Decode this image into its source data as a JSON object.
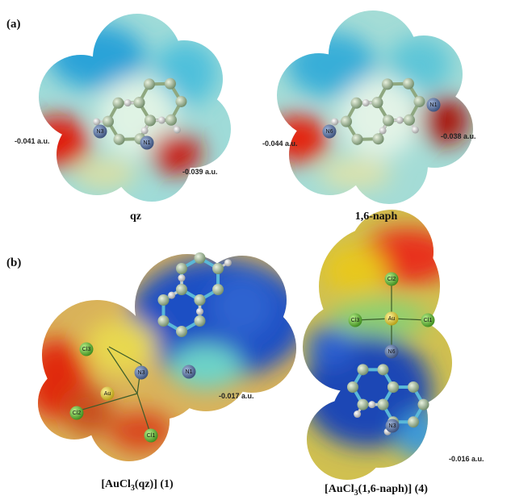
{
  "panel_a": {
    "label": "(a)",
    "molecules": [
      {
        "caption": "qz",
        "values": [
          "-0.041 a.u.",
          "-0.039 a.u."
        ],
        "atoms": [
          "N3",
          "N1"
        ]
      },
      {
        "caption": "1,6-naph",
        "values": [
          "-0.044 a.u.",
          "-0.038 a.u."
        ],
        "atoms": [
          "N6",
          "N1"
        ]
      }
    ]
  },
  "panel_b": {
    "label": "(b)",
    "molecules": [
      {
        "caption": [
          "[AuCl",
          "3",
          "(qz)] (1)"
        ],
        "values": [
          "-0.017 a.u."
        ],
        "atoms": [
          "Cl3",
          "N3",
          "N1",
          "Au",
          "Cl2",
          "Cl1"
        ]
      },
      {
        "caption": [
          "[AuCl",
          "3",
          "(1,6-naph)] (4)"
        ],
        "values": [
          "-0.016 a.u."
        ],
        "atoms": [
          "Cl2",
          "Cl3",
          "Au",
          "Cl1",
          "N6",
          "N3"
        ]
      }
    ]
  }
}
